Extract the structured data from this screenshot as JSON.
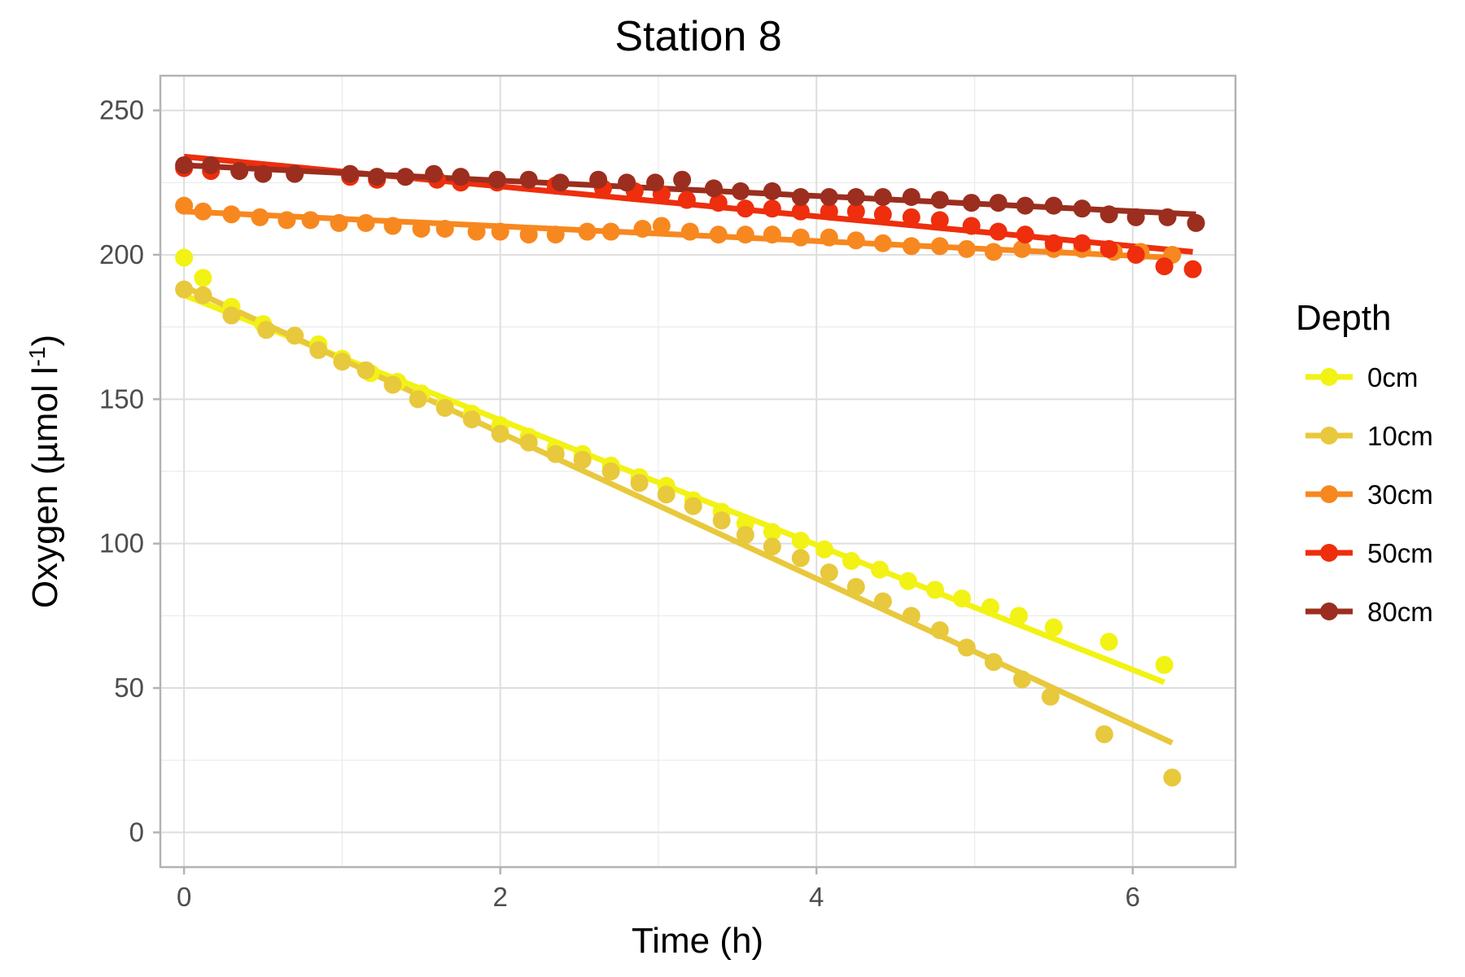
{
  "chart_data": {
    "type": "scatter",
    "title": "Station 8",
    "xlabel": "Time (h)",
    "ylabel": {
      "main": "Oxygen (µmol l",
      "sup": "-1",
      "close": ")"
    },
    "xlim": [
      -0.15,
      6.65
    ],
    "ylim": [
      -12,
      262
    ],
    "x_ticks": [
      0,
      2,
      4,
      6
    ],
    "x_tick_labels": [
      "0",
      "2",
      "4",
      "6"
    ],
    "y_ticks": [
      0,
      50,
      100,
      150,
      200,
      250
    ],
    "y_tick_labels": [
      "0",
      "50",
      "100",
      "150",
      "200",
      "250"
    ],
    "grid": true,
    "legend": {
      "title": "Depth",
      "position": "right"
    },
    "series": [
      {
        "name": "0cm",
        "color": "#F2F215",
        "fit": [
          [
            0,
            186
          ],
          [
            6.2,
            52
          ]
        ],
        "points": [
          [
            0,
            199
          ],
          [
            0.12,
            192
          ],
          [
            0.3,
            182
          ],
          [
            0.5,
            176
          ],
          [
            0.7,
            172
          ],
          [
            0.85,
            169
          ],
          [
            1.0,
            164
          ],
          [
            1.18,
            159
          ],
          [
            1.35,
            156
          ],
          [
            1.5,
            152
          ],
          [
            1.65,
            148
          ],
          [
            1.82,
            145
          ],
          [
            2.0,
            141
          ],
          [
            2.18,
            137
          ],
          [
            2.35,
            133
          ],
          [
            2.52,
            131
          ],
          [
            2.7,
            127
          ],
          [
            2.88,
            123
          ],
          [
            3.05,
            120
          ],
          [
            3.22,
            115
          ],
          [
            3.4,
            111
          ],
          [
            3.55,
            107
          ],
          [
            3.72,
            104
          ],
          [
            3.9,
            101
          ],
          [
            4.05,
            98
          ],
          [
            4.22,
            94
          ],
          [
            4.4,
            91
          ],
          [
            4.58,
            87
          ],
          [
            4.75,
            84
          ],
          [
            4.92,
            81
          ],
          [
            5.1,
            78
          ],
          [
            5.28,
            75
          ],
          [
            5.5,
            71
          ],
          [
            5.85,
            66
          ],
          [
            6.2,
            58
          ]
        ]
      },
      {
        "name": "10cm",
        "color": "#E8C83C",
        "fit": [
          [
            0,
            189
          ],
          [
            6.25,
            31
          ]
        ],
        "points": [
          [
            0,
            188
          ],
          [
            0.12,
            186
          ],
          [
            0.3,
            179
          ],
          [
            0.52,
            174
          ],
          [
            0.7,
            172
          ],
          [
            0.85,
            167
          ],
          [
            1.0,
            163
          ],
          [
            1.15,
            160
          ],
          [
            1.32,
            155
          ],
          [
            1.48,
            150
          ],
          [
            1.65,
            147
          ],
          [
            1.82,
            143
          ],
          [
            2.0,
            138
          ],
          [
            2.18,
            135
          ],
          [
            2.35,
            131
          ],
          [
            2.52,
            129
          ],
          [
            2.7,
            125
          ],
          [
            2.88,
            121
          ],
          [
            3.05,
            117
          ],
          [
            3.22,
            113
          ],
          [
            3.4,
            108
          ],
          [
            3.55,
            103
          ],
          [
            3.72,
            99
          ],
          [
            3.9,
            95
          ],
          [
            4.08,
            90
          ],
          [
            4.25,
            85
          ],
          [
            4.42,
            80
          ],
          [
            4.6,
            75
          ],
          [
            4.78,
            70
          ],
          [
            4.95,
            64
          ],
          [
            5.12,
            59
          ],
          [
            5.3,
            53
          ],
          [
            5.48,
            47
          ],
          [
            5.82,
            34
          ],
          [
            6.25,
            19
          ]
        ]
      },
      {
        "name": "30cm",
        "color": "#F7881F",
        "fit": [
          [
            0,
            215
          ],
          [
            6.25,
            199
          ]
        ],
        "points": [
          [
            0,
            217
          ],
          [
            0.12,
            215
          ],
          [
            0.3,
            214
          ],
          [
            0.48,
            213
          ],
          [
            0.65,
            212
          ],
          [
            0.8,
            212
          ],
          [
            0.98,
            211
          ],
          [
            1.15,
            211
          ],
          [
            1.32,
            210
          ],
          [
            1.5,
            209
          ],
          [
            1.65,
            209
          ],
          [
            1.85,
            208
          ],
          [
            2.0,
            208
          ],
          [
            2.18,
            207
          ],
          [
            2.35,
            207
          ],
          [
            2.55,
            208
          ],
          [
            2.7,
            208
          ],
          [
            2.9,
            209
          ],
          [
            3.02,
            210
          ],
          [
            3.2,
            208
          ],
          [
            3.38,
            207
          ],
          [
            3.55,
            207
          ],
          [
            3.72,
            207
          ],
          [
            3.9,
            206
          ],
          [
            4.08,
            206
          ],
          [
            4.25,
            205
          ],
          [
            4.42,
            204
          ],
          [
            4.6,
            203
          ],
          [
            4.78,
            203
          ],
          [
            4.95,
            202
          ],
          [
            5.12,
            201
          ],
          [
            5.3,
            202
          ],
          [
            5.5,
            202
          ],
          [
            5.68,
            202
          ],
          [
            5.88,
            201
          ],
          [
            6.05,
            201
          ],
          [
            6.25,
            200
          ]
        ]
      },
      {
        "name": "50cm",
        "color": "#EE2E0D",
        "fit": [
          [
            0,
            234
          ],
          [
            6.38,
            201
          ]
        ],
        "points": [
          [
            0,
            230
          ],
          [
            0.17,
            229
          ],
          [
            1.05,
            227
          ],
          [
            1.22,
            226
          ],
          [
            1.6,
            226
          ],
          [
            1.75,
            225
          ],
          [
            1.98,
            225
          ],
          [
            2.35,
            224
          ],
          [
            2.65,
            223
          ],
          [
            2.85,
            222
          ],
          [
            3.02,
            221
          ],
          [
            3.18,
            219
          ],
          [
            3.38,
            218
          ],
          [
            3.55,
            216
          ],
          [
            3.72,
            216
          ],
          [
            3.9,
            215
          ],
          [
            4.08,
            215
          ],
          [
            4.25,
            215
          ],
          [
            4.42,
            214
          ],
          [
            4.6,
            213
          ],
          [
            4.78,
            212
          ],
          [
            4.98,
            210
          ],
          [
            5.15,
            208
          ],
          [
            5.32,
            207
          ],
          [
            5.5,
            204
          ],
          [
            5.68,
            204
          ],
          [
            5.85,
            202
          ],
          [
            6.02,
            200
          ],
          [
            6.2,
            196
          ],
          [
            6.38,
            195
          ]
        ]
      },
      {
        "name": "80cm",
        "color": "#9B2E1F",
        "fit": [
          [
            0,
            231
          ],
          [
            6.4,
            214
          ]
        ],
        "points": [
          [
            0,
            231
          ],
          [
            0.17,
            231
          ],
          [
            0.35,
            229
          ],
          [
            0.5,
            228
          ],
          [
            0.7,
            228
          ],
          [
            1.05,
            228
          ],
          [
            1.22,
            227
          ],
          [
            1.4,
            227
          ],
          [
            1.58,
            228
          ],
          [
            1.75,
            227
          ],
          [
            1.98,
            226
          ],
          [
            2.18,
            226
          ],
          [
            2.38,
            225
          ],
          [
            2.62,
            226
          ],
          [
            2.8,
            225
          ],
          [
            2.98,
            225
          ],
          [
            3.15,
            226
          ],
          [
            3.35,
            223
          ],
          [
            3.52,
            222
          ],
          [
            3.72,
            222
          ],
          [
            3.9,
            220
          ],
          [
            4.08,
            220
          ],
          [
            4.25,
            220
          ],
          [
            4.42,
            220
          ],
          [
            4.6,
            220
          ],
          [
            4.78,
            219
          ],
          [
            4.98,
            218
          ],
          [
            5.15,
            218
          ],
          [
            5.32,
            217
          ],
          [
            5.5,
            217
          ],
          [
            5.68,
            216
          ],
          [
            5.85,
            214
          ],
          [
            6.02,
            213
          ],
          [
            6.22,
            213
          ],
          [
            6.4,
            211
          ]
        ]
      }
    ]
  }
}
